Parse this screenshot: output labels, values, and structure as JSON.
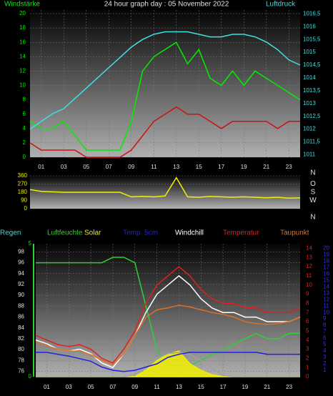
{
  "chart_data": [
    {
      "type": "line",
      "title": "24 hour graph day : 05 November 2022",
      "y_label": "Windstärke",
      "y2_label": "Luftdruck",
      "x": [
        0,
        1,
        2,
        3,
        4,
        5,
        6,
        7,
        8,
        9,
        10,
        11,
        12,
        13,
        14,
        15,
        16,
        17,
        18,
        19,
        20,
        21,
        22,
        23,
        24
      ],
      "xlim": [
        0,
        24
      ],
      "xticks": [
        {
          "value": 1,
          "label": "01"
        },
        {
          "value": 3,
          "label": "03"
        },
        {
          "value": 5,
          "label": "05"
        },
        {
          "value": 7,
          "label": "07"
        },
        {
          "value": 9,
          "label": "09"
        },
        {
          "value": 11,
          "label": "11"
        },
        {
          "value": 13,
          "label": "13"
        },
        {
          "value": 15,
          "label": "15"
        },
        {
          "value": 17,
          "label": "17"
        },
        {
          "value": 19,
          "label": "19"
        },
        {
          "value": 21,
          "label": "21"
        },
        {
          "value": 23,
          "label": "23"
        }
      ],
      "ylim": [
        0,
        20.5
      ],
      "yticks": [
        0,
        2,
        4,
        6,
        8,
        10,
        12,
        14,
        16,
        18,
        20
      ],
      "y2lim": [
        1010.9,
        1016.65
      ],
      "y2ticks": [
        1011,
        {
          "value": 1011.5,
          "label": "1011,5"
        },
        1012,
        {
          "value": 1012.5,
          "label": "1012,5"
        },
        1013,
        {
          "value": 1013.5,
          "label": "1013,5"
        },
        1014,
        {
          "value": 1014.5,
          "label": "1014,5"
        },
        1015,
        {
          "value": 1015.5,
          "label": "1015,5"
        },
        1016,
        {
          "value": 1016.5,
          "label": "1016,5"
        }
      ],
      "grid": true,
      "series": [
        {
          "name": "Windstärke",
          "color": "#00ee00",
          "values": [
            5,
            4,
            4,
            5,
            3,
            1,
            1,
            1,
            1,
            5,
            12,
            14,
            15,
            16,
            13,
            15,
            11,
            10,
            12,
            10,
            12,
            11,
            10,
            9,
            8
          ]
        },
        {
          "color": "#d01010",
          "values": [
            2,
            1,
            1,
            1,
            1,
            0,
            0,
            0,
            0,
            1,
            3,
            5,
            6,
            7,
            6,
            6,
            5,
            4,
            5,
            5,
            5,
            5,
            4,
            5,
            5
          ]
        },
        {
          "name": "Luftdruck",
          "color": "#40e0e0",
          "axis": "y2",
          "values": [
            1012,
            1012.3,
            1012.6,
            1012.8,
            1013.2,
            1013.6,
            1014,
            1014.4,
            1014.8,
            1015.2,
            1015.5,
            1015.7,
            1015.8,
            1015.8,
            1015.8,
            1015.7,
            1015.6,
            1015.6,
            1015.7,
            1015.7,
            1015.6,
            1015.4,
            1015.1,
            1014.7,
            1014.5
          ]
        }
      ]
    },
    {
      "type": "line",
      "x": [
        0,
        1,
        2,
        3,
        4,
        5,
        6,
        7,
        8,
        9,
        10,
        11,
        12,
        13,
        14,
        15,
        16,
        17,
        18,
        19,
        20,
        21,
        22,
        23,
        24
      ],
      "xlim": [
        0,
        24
      ],
      "ylim": [
        0,
        360
      ],
      "yticks": [
        0,
        90,
        180,
        270,
        360
      ],
      "direction_labels": [
        "N",
        "W",
        "S",
        "O",
        "N"
      ],
      "grid": true,
      "series": [
        {
          "color": "#f0f000",
          "values": [
            210,
            190,
            185,
            180,
            180,
            180,
            180,
            180,
            180,
            130,
            135,
            130,
            140,
            340,
            130,
            125,
            135,
            130,
            125,
            130,
            125,
            120,
            125,
            115,
            120
          ]
        }
      ]
    },
    {
      "type": "line",
      "x": [
        0,
        1,
        2,
        3,
        4,
        5,
        6,
        7,
        8,
        9,
        10,
        11,
        12,
        13,
        14,
        15,
        16,
        17,
        18,
        19,
        20,
        21,
        22,
        23,
        24
      ],
      "xlim": [
        0,
        24
      ],
      "xticks": [
        {
          "value": 1,
          "label": "01"
        },
        {
          "value": 3,
          "label": "03"
        },
        {
          "value": 5,
          "label": "05"
        },
        {
          "value": 7,
          "label": "07"
        },
        {
          "value": 9,
          "label": "09"
        },
        {
          "value": 11,
          "label": "11"
        },
        {
          "value": 13,
          "label": "13"
        },
        {
          "value": 15,
          "label": "15"
        },
        {
          "value": 17,
          "label": "17"
        },
        {
          "value": 19,
          "label": "19"
        },
        {
          "value": 21,
          "label": "21"
        },
        {
          "value": 23,
          "label": "23"
        }
      ],
      "ylim": [
        75,
        99.5
      ],
      "yticks": [
        76,
        78,
        80,
        82,
        84,
        86,
        88,
        90,
        92,
        94,
        96,
        98
      ],
      "y2lim": [
        0,
        14.5
      ],
      "y2ticks": [
        0,
        1,
        2,
        3,
        4,
        5,
        6,
        7,
        8,
        9,
        10,
        11,
        12,
        13,
        14
      ],
      "y3lim": [
        0,
        20.7
      ],
      "y3ticks": [
        1,
        2,
        3,
        4,
        5,
        6,
        7,
        8,
        9,
        10,
        11,
        12,
        13,
        14,
        15,
        16,
        17,
        18,
        19,
        20
      ],
      "y4lim": [
        0,
        5
      ],
      "y4ticks": [
        0,
        5
      ],
      "grid": true,
      "series": [
        {
          "name": "Regen",
          "color": "#30e0e0",
          "axis": "y4",
          "values": [
            0,
            0,
            0,
            0,
            0,
            0,
            0,
            0,
            0,
            0,
            0,
            0,
            0,
            0,
            0,
            0,
            0,
            0,
            0,
            0,
            0,
            0,
            0,
            0,
            0
          ]
        },
        {
          "name": "Luftfeuchte",
          "color": "#30d030",
          "values": [
            96,
            96,
            96,
            96,
            96,
            96,
            96,
            97,
            97,
            96,
            88,
            80,
            77,
            77,
            77,
            78,
            79,
            80,
            81,
            82,
            83,
            82,
            82,
            83,
            83
          ]
        },
        {
          "name": "Solar",
          "color": "#f0f000",
          "axis": "y3",
          "style": "area",
          "values": [
            0,
            0,
            0,
            0,
            0,
            0,
            0,
            0,
            0,
            0,
            1,
            2.5,
            3.5,
            4,
            2,
            1,
            0.3,
            0,
            0,
            0,
            0,
            0,
            0,
            0,
            0
          ]
        },
        {
          "color": "#a0a0a0",
          "axis": "y3",
          "values": [
            0,
            0,
            0,
            0,
            0,
            0,
            0,
            0,
            0,
            0.3,
            1.5,
            2.8,
            3.6,
            3.8,
            3.5,
            2.5,
            1.3,
            0.2,
            0,
            0,
            0,
            0,
            0,
            0,
            0
          ]
        },
        {
          "name": "Temp. 5cm",
          "color": "#2020e0",
          "axis": "y3",
          "values": [
            3.8,
            3.8,
            3.5,
            3.2,
            2.8,
            2.4,
            1.5,
            1,
            0.8,
            1,
            1.5,
            2,
            3,
            3.5,
            3.8,
            3.8,
            3.8,
            3.8,
            3.8,
            3.8,
            3.8,
            3.5,
            3.5,
            3.5,
            3.5
          ]
        },
        {
          "name": "Windchill",
          "color": "#ffffff",
          "axis": "y2",
          "values": [
            4,
            3.6,
            3,
            2.8,
            3,
            2.5,
            1.5,
            1,
            2.5,
            4.5,
            7,
            9,
            10,
            11,
            10,
            8.5,
            7.5,
            7,
            7,
            6.5,
            6.5,
            6,
            6,
            6,
            6.5
          ]
        },
        {
          "name": "Temperatur",
          "color": "#e02020",
          "axis": "y2",
          "values": [
            4.5,
            4,
            3.5,
            3.3,
            3.5,
            3,
            2,
            1.5,
            3,
            5,
            8,
            10,
            11,
            12,
            11,
            9.5,
            8.5,
            8,
            8,
            7.5,
            7.5,
            7,
            7,
            7,
            7.5
          ]
        },
        {
          "name": "Taupunkt",
          "color": "#e07020",
          "axis": "y2",
          "values": [
            3.8,
            3.4,
            3,
            2.8,
            2.8,
            2.4,
            1.8,
            1.3,
            2.5,
            4.5,
            6.5,
            7.3,
            7.5,
            7.8,
            7.6,
            7.3,
            7,
            6.8,
            6.5,
            6,
            5.8,
            5.7,
            5.8,
            6,
            6.5
          ]
        }
      ]
    }
  ]
}
